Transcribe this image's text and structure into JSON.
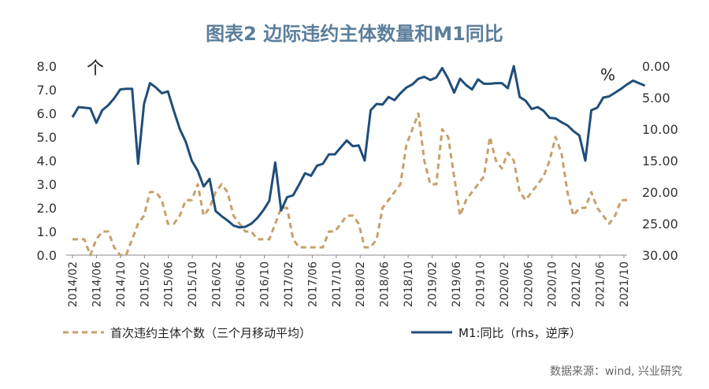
{
  "page": {
    "title": "图表2 边际违约主体数量和M1同比",
    "source": "数据来源：wind, 兴业研究"
  },
  "colors": {
    "m1": "#1f4e79",
    "defaults": "#c8a06a",
    "title": "#5b7e9b",
    "axis": "#333333"
  },
  "chart_data": {
    "type": "line",
    "title": "图表2 边际违约主体数量和M1同比",
    "left_axis": {
      "unit_label": "个",
      "min": 0,
      "max": 8,
      "ticks": [
        "0.0",
        "1.0",
        "2.0",
        "3.0",
        "4.0",
        "5.0",
        "6.0",
        "7.0",
        "8.0"
      ]
    },
    "right_axis": {
      "unit_label": "%",
      "reversed": true,
      "min": 0,
      "max": 30,
      "ticks": [
        "0.00",
        "5.00",
        "10.00",
        "15.00",
        "20.00",
        "25.00",
        "30.00"
      ]
    },
    "x_tick_labels": [
      "2014/02",
      "2014/06",
      "2014/10",
      "2015/02",
      "2015/06",
      "2015/10",
      "2016/02",
      "2016/06",
      "2016/10",
      "2017/02",
      "2017/06",
      "2017/10",
      "2018/02",
      "2018/06",
      "2018/10",
      "2019/02",
      "2019/06",
      "2019/10",
      "2020/02",
      "2020/06",
      "2020/10",
      "2021/02",
      "2021/06",
      "2021/10"
    ],
    "legend_position": "bottom",
    "series": [
      {
        "name": "首次违约主体个数（三个月移动平均）",
        "axis": "left",
        "style": "dashed",
        "values": [
          0.67,
          0.67,
          0.67,
          0.0,
          0.67,
          1.0,
          1.0,
          0.33,
          0.0,
          0.0,
          0.67,
          1.33,
          1.67,
          2.67,
          2.67,
          2.33,
          1.33,
          1.33,
          1.67,
          2.33,
          2.33,
          3.0,
          1.67,
          2.0,
          2.67,
          3.0,
          2.67,
          1.67,
          1.33,
          1.0,
          1.0,
          0.67,
          0.67,
          0.67,
          1.33,
          2.0,
          2.0,
          0.67,
          0.33,
          0.33,
          0.33,
          0.33,
          0.33,
          1.0,
          1.0,
          1.33,
          1.67,
          1.67,
          1.33,
          0.33,
          0.33,
          0.67,
          2.0,
          2.33,
          2.67,
          3.0,
          4.67,
          5.33,
          6.0,
          4.0,
          3.0,
          3.0,
          5.33,
          5.0,
          3.33,
          1.67,
          2.33,
          2.67,
          3.0,
          3.33,
          5.0,
          4.0,
          3.67,
          4.33,
          4.0,
          2.67,
          2.33,
          2.67,
          3.0,
          3.33,
          4.0,
          5.0,
          4.33,
          2.67,
          1.67,
          2.0,
          2.0,
          2.67,
          2.0,
          1.67,
          1.33,
          1.67,
          2.33,
          2.33
        ]
      },
      {
        "name": "M1:同比（rhs，逆序）",
        "axis": "right",
        "style": "solid",
        "values": [
          8.1,
          6.5,
          6.6,
          6.7,
          9.0,
          7.0,
          6.2,
          5.1,
          3.7,
          3.6,
          3.6,
          15.5,
          6.0,
          2.7,
          3.4,
          4.3,
          4.0,
          7.1,
          10.0,
          12.0,
          15.0,
          16.6,
          19.1,
          17.9,
          23.0,
          23.8,
          24.5,
          25.3,
          25.6,
          25.5,
          25.0,
          24.1,
          22.9,
          21.4,
          15.3,
          22.9,
          20.8,
          20.5,
          18.8,
          17.0,
          17.4,
          15.8,
          15.5,
          14.0,
          14.0,
          12.9,
          11.8,
          12.7,
          12.6,
          15.0,
          7.0,
          6.0,
          6.1,
          4.9,
          5.4,
          4.3,
          3.4,
          2.9,
          2.0,
          1.7,
          2.2,
          1.8,
          0.3,
          2.0,
          4.2,
          2.0,
          3.0,
          3.7,
          2.1,
          2.8,
          2.8,
          2.7,
          2.7,
          3.5,
          0.0,
          4.9,
          5.5,
          6.8,
          6.5,
          7.1,
          8.2,
          8.3,
          8.9,
          9.4,
          10.3,
          11.0,
          15.0,
          7.0,
          6.6,
          5.0,
          4.8,
          4.2,
          3.6,
          2.9,
          2.3,
          2.7,
          3.1
        ]
      }
    ]
  }
}
